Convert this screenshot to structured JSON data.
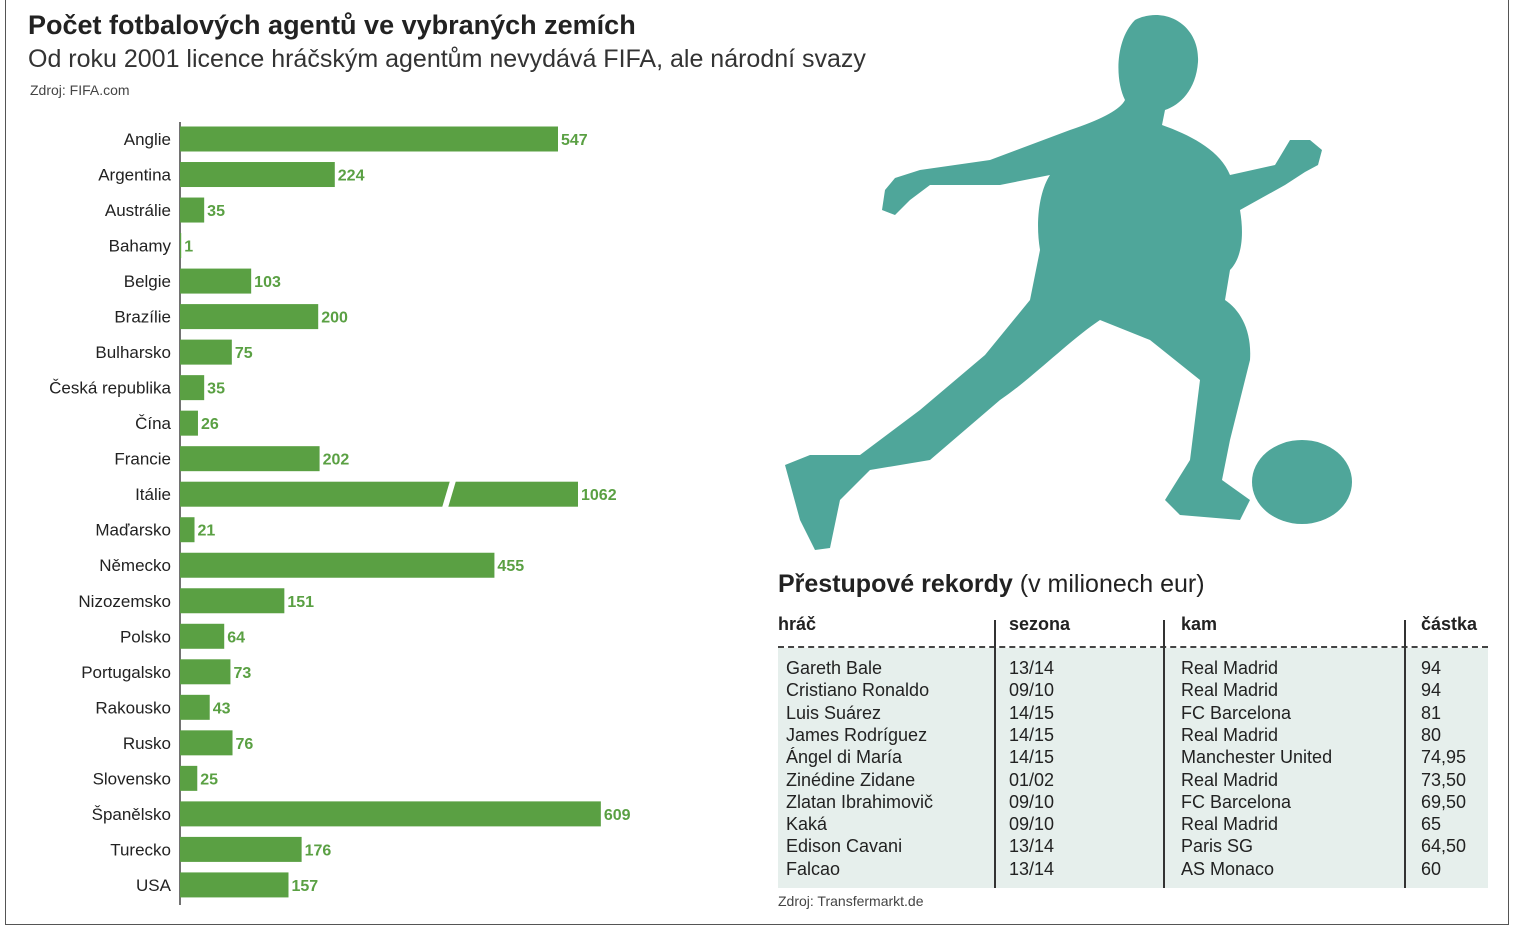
{
  "title": "Počet fotbalových agentů ve vybraných zemích",
  "subtitle": "Od roku 2001 licence hráčským agentům nevydává FIFA, ale národní svazy",
  "source": "Zdroj: FIFA.com",
  "colors": {
    "bar": "#5aa043",
    "label": "#5aa043",
    "player": "#4fa69a",
    "table_bg": "#e6efec"
  },
  "chart_data": {
    "type": "bar",
    "orientation": "horizontal",
    "title": "Počet fotbalových agentů ve vybraných zemích",
    "categories": [
      "Anglie",
      "Argentina",
      "Austrálie",
      "Bahamy",
      "Belgie",
      "Brazílie",
      "Bulharsko",
      "Česká republika",
      "Čína",
      "Francie",
      "Itálie",
      "Maďarsko",
      "Německo",
      "Nizozemsko",
      "Polsko",
      "Portugalsko",
      "Rakousko",
      "Rusko",
      "Slovensko",
      "Španělsko",
      "Turecko",
      "USA"
    ],
    "values": [
      547,
      224,
      35,
      1,
      103,
      200,
      75,
      35,
      26,
      202,
      1062,
      21,
      455,
      151,
      64,
      73,
      43,
      76,
      25,
      609,
      176,
      157
    ],
    "value_labels": [
      "547",
      "224",
      "35",
      "1",
      "103",
      "200",
      "75",
      "35",
      "26",
      "202",
      "1062",
      "21",
      "455",
      "151",
      "64",
      "73",
      "43",
      "76",
      "25",
      "609",
      "176",
      "157"
    ],
    "broken_axis_bars": [
      "Itálie"
    ],
    "xlabel": "",
    "ylabel": ""
  },
  "table": {
    "title": "Přestupové rekordy",
    "title_unit": "(v milionech eur)",
    "headers": [
      "hráč",
      "sezona",
      "kam",
      "částka"
    ],
    "rows": [
      [
        "Gareth Bale",
        "13/14",
        "Real Madrid",
        "94"
      ],
      [
        "Cristiano Ronaldo",
        "09/10",
        "Real Madrid",
        "94"
      ],
      [
        "Luis Suárez",
        "14/15",
        "FC Barcelona",
        "81"
      ],
      [
        "James Rodríguez",
        "14/15",
        "Real Madrid",
        "80"
      ],
      [
        "Ángel di María",
        "14/15",
        "Manchester United",
        "74,95"
      ],
      [
        "Zinédine Zidane",
        "01/02",
        "Real Madrid",
        "73,50"
      ],
      [
        "Zlatan Ibrahimovič",
        "09/10",
        "FC Barcelona",
        "69,50"
      ],
      [
        "Kaká",
        "09/10",
        "Real Madrid",
        "65"
      ],
      [
        "Edison Cavani",
        "13/14",
        "Paris SG",
        "64,50"
      ],
      [
        "Falcao",
        "13/14",
        "AS Monaco",
        "60"
      ]
    ],
    "source": "Zdroj: Transfermarkt.de"
  }
}
